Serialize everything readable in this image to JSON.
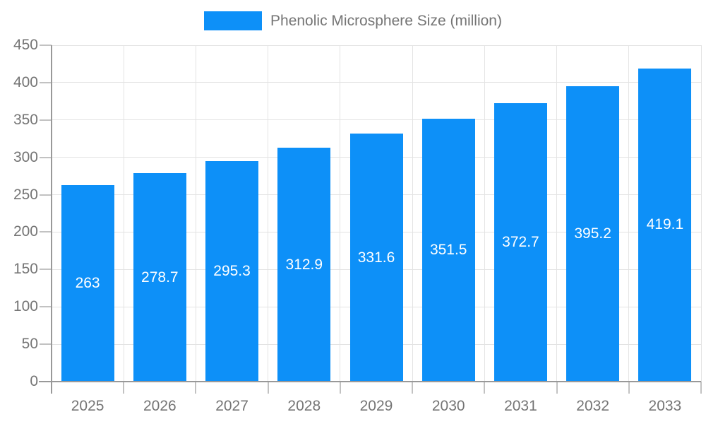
{
  "chart_data": {
    "type": "bar",
    "title": "",
    "legend": "Phenolic Microsphere Size (million)",
    "categories": [
      "2025",
      "2026",
      "2027",
      "2028",
      "2029",
      "2030",
      "2031",
      "2032",
      "2033"
    ],
    "series": [
      {
        "name": "Phenolic Microsphere Size (million)",
        "values": [
          263,
          278.7,
          295.3,
          312.9,
          331.6,
          351.5,
          372.7,
          395.2,
          419.1
        ]
      }
    ],
    "xlabel": "",
    "ylabel": "",
    "ylim": [
      0,
      450
    ],
    "yticks": [
      0,
      50,
      100,
      150,
      200,
      250,
      300,
      350,
      400,
      450
    ],
    "grid": true,
    "legend_position": "top",
    "value_label_position": "inside-center"
  },
  "colors": {
    "bar": "#0d90f8",
    "grid": "#e3e3e3",
    "axis": "#999999",
    "tick": "#c2c2c2",
    "text": "#757575",
    "value_label": "#ffffff",
    "background": "#ffffff"
  }
}
